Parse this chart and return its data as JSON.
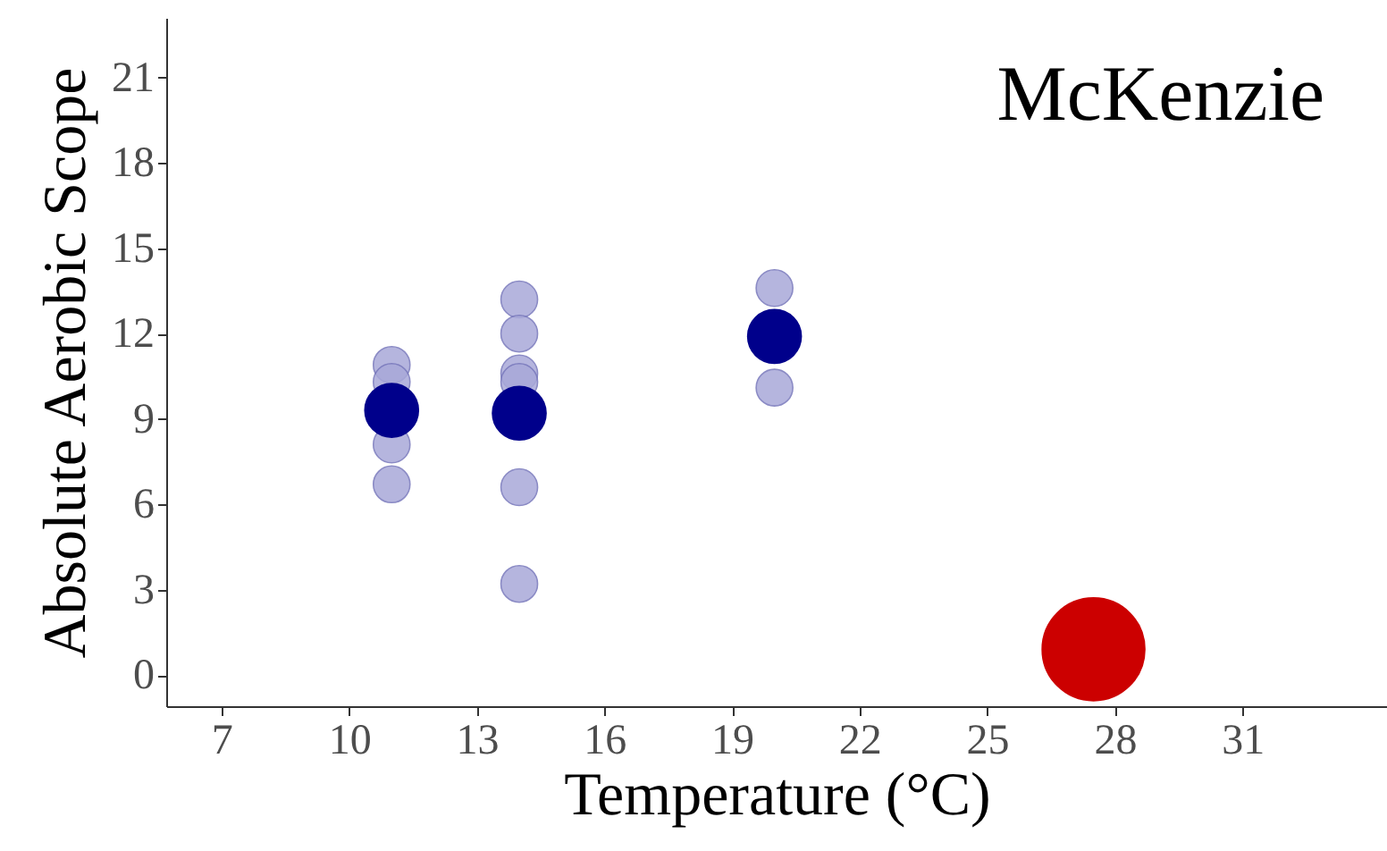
{
  "chart_data": {
    "type": "scatter",
    "xlabel": "Temperature (°C)",
    "ylabel": "Absolute Aerobic Scope",
    "annotations": [
      "McKenzie"
    ],
    "xlim": [
      5.7,
      34.4
    ],
    "xticks": [
      7,
      10,
      13,
      16,
      19,
      22,
      25,
      28,
      31
    ],
    "ylim": [
      -1.1,
      23.1
    ],
    "yticks": [
      0,
      3,
      6,
      9,
      12,
      15,
      18,
      21
    ],
    "grid": false,
    "marker": "circle",
    "series": [
      {
        "color": "#a9a9d9",
        "x": [
          11,
          11,
          11,
          11,
          14,
          14,
          14,
          14,
          14,
          14,
          20,
          20
        ],
        "values": [
          10.9,
          10.3,
          8.1,
          6.7,
          13.2,
          12,
          10.6,
          10.3,
          6.6,
          3.2,
          13.6,
          10.1
        ]
      },
      {
        "color": "#00008b",
        "x": [
          11,
          14,
          20
        ],
        "values": [
          9.3,
          9.2,
          11.9
        ]
      },
      {
        "color": "#cc0000",
        "x": [
          27.5
        ],
        "values": [
          0.9
        ]
      }
    ]
  }
}
